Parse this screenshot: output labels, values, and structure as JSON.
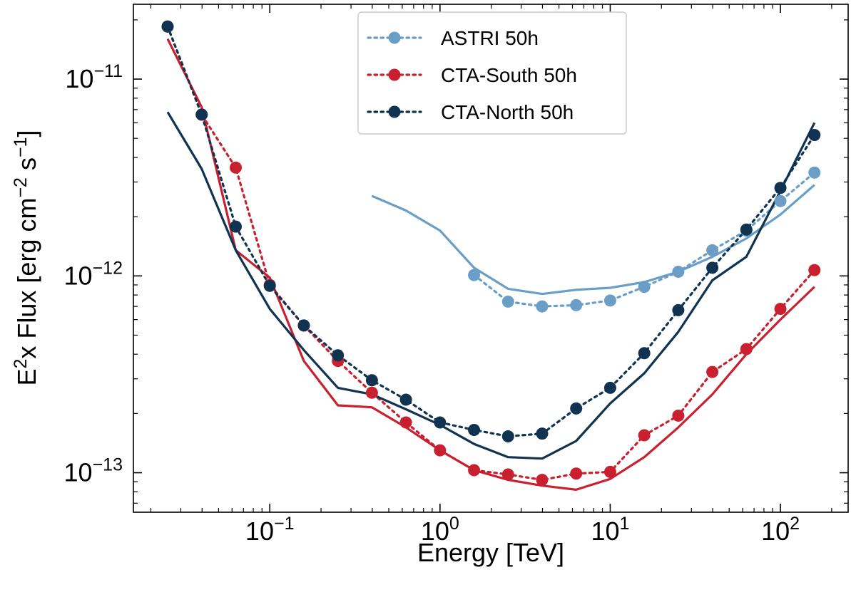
{
  "chart_data": {
    "type": "line",
    "title": "",
    "xlabel": "Energy [TeV]",
    "ylabel_parts": [
      "E",
      "2",
      "x Flux [erg cm",
      "−2",
      " s",
      "−1",
      "]"
    ],
    "xscale": "log",
    "yscale": "log",
    "xlim": [
      0.0158,
      250
    ],
    "ylim": [
      6.3e-14,
      2.4e-11
    ],
    "x_ticks": [
      {
        "value": 0.1,
        "base": "10",
        "exp": "−1"
      },
      {
        "value": 1,
        "base": "10",
        "exp": "0"
      },
      {
        "value": 10,
        "base": "10",
        "exp": "1"
      },
      {
        "value": 100,
        "base": "10",
        "exp": "2"
      }
    ],
    "y_ticks": [
      {
        "value": 1e-13,
        "base": "10",
        "exp": "−13"
      },
      {
        "value": 1e-12,
        "base": "10",
        "exp": "−12"
      },
      {
        "value": 1e-11,
        "base": "10",
        "exp": "−11"
      }
    ],
    "legend_position": "top-center",
    "series": [
      {
        "name": "ASTRI 50h",
        "color": "#6a9ec6",
        "points": {
          "x": [
            1.585,
            2.512,
            3.981,
            6.31,
            10.0,
            15.85,
            25.12,
            39.81,
            63.1,
            100.0,
            158.5
          ],
          "y": [
            1.01e-12,
            7.4e-13,
            7e-13,
            7.1e-13,
            7.5e-13,
            8.8e-13,
            1.05e-12,
            1.35e-12,
            1.7e-12,
            2.4e-12,
            3.35e-12
          ]
        },
        "curve": {
          "x": [
            0.398,
            0.631,
            1.0,
            1.585,
            2.512,
            3.981,
            6.31,
            10.0,
            15.85,
            25.12,
            39.81,
            63.1,
            100.0,
            158.5
          ],
          "y": [
            2.55e-12,
            2.15e-12,
            1.7e-12,
            1.1e-12,
            8.6e-13,
            8.1e-13,
            8.5e-13,
            8.7e-13,
            9.3e-13,
            1.05e-12,
            1.25e-12,
            1.55e-12,
            2.05e-12,
            2.9e-12
          ]
        }
      },
      {
        "name": "CTA-South 50h",
        "color": "#c8202f",
        "points": {
          "x": [
            0.0251,
            0.0398,
            0.0631,
            0.1,
            0.1585,
            0.2512,
            0.3981,
            0.631,
            1.0,
            1.585,
            2.512,
            3.981,
            6.31,
            10.0,
            15.85,
            25.12,
            39.81,
            63.1,
            100.0,
            158.5
          ],
          "y": [
            1.85e-11,
            6.6e-12,
            3.55e-12,
            9e-13,
            5.6e-13,
            3.7e-13,
            2.55e-13,
            1.8e-13,
            1.3e-13,
            1.03e-13,
            9.8e-14,
            9.2e-14,
            9.9e-14,
            1.01e-13,
            1.55e-13,
            1.95e-13,
            3.25e-13,
            4.25e-13,
            6.8e-13,
            1.07e-12
          ]
        },
        "curve": {
          "x": [
            0.0251,
            0.0398,
            0.0631,
            0.1,
            0.1585,
            0.2512,
            0.3981,
            0.631,
            1.0,
            1.585,
            2.512,
            3.981,
            6.31,
            10.0,
            15.85,
            25.12,
            39.81,
            63.1,
            100.0,
            158.5
          ],
          "y": [
            1.6e-11,
            7.2e-12,
            1.35e-12,
            9.8e-13,
            3.7e-13,
            2.2e-13,
            2.15e-13,
            1.7e-13,
            1.3e-13,
            1.03e-13,
            9.2e-14,
            8.6e-14,
            8.2e-14,
            9.3e-14,
            1.2e-13,
            1.7e-13,
            2.5e-13,
            4e-13,
            6e-13,
            8.8e-13
          ]
        }
      },
      {
        "name": "CTA-North 50h",
        "color": "#0f3350",
        "points": {
          "x": [
            0.0251,
            0.0398,
            0.0631,
            0.1,
            0.1585,
            0.2512,
            0.3981,
            0.631,
            1.0,
            1.585,
            2.512,
            3.981,
            6.31,
            10.0,
            15.85,
            25.12,
            39.81,
            63.1,
            100.0,
            158.5
          ],
          "y": [
            1.85e-11,
            6.6e-12,
            1.78e-12,
            8.9e-13,
            5.6e-13,
            3.95e-13,
            2.95e-13,
            2.35e-13,
            1.8e-13,
            1.65e-13,
            1.53e-13,
            1.58e-13,
            2.12e-13,
            2.7e-13,
            4.05e-13,
            6.7e-13,
            1.1e-12,
            1.72e-12,
            2.8e-12,
            5.2e-12
          ]
        },
        "curve": {
          "x": [
            0.0251,
            0.0398,
            0.0631,
            0.1,
            0.1585,
            0.2512,
            0.3981,
            0.631,
            1.0,
            1.585,
            2.512,
            3.981,
            6.31,
            10.0,
            15.85,
            25.12,
            39.81,
            63.1,
            100.0,
            158.5
          ],
          "y": [
            6.8e-12,
            3.5e-12,
            1.35e-12,
            6.8e-13,
            4.2e-13,
            2.7e-13,
            2.5e-13,
            2.1e-13,
            1.75e-13,
            1.4e-13,
            1.2e-13,
            1.18e-13,
            1.45e-13,
            2.25e-13,
            3.2e-13,
            5.2e-13,
            9.5e-13,
            1.25e-12,
            2.7e-12,
            6e-12
          ]
        }
      }
    ]
  }
}
